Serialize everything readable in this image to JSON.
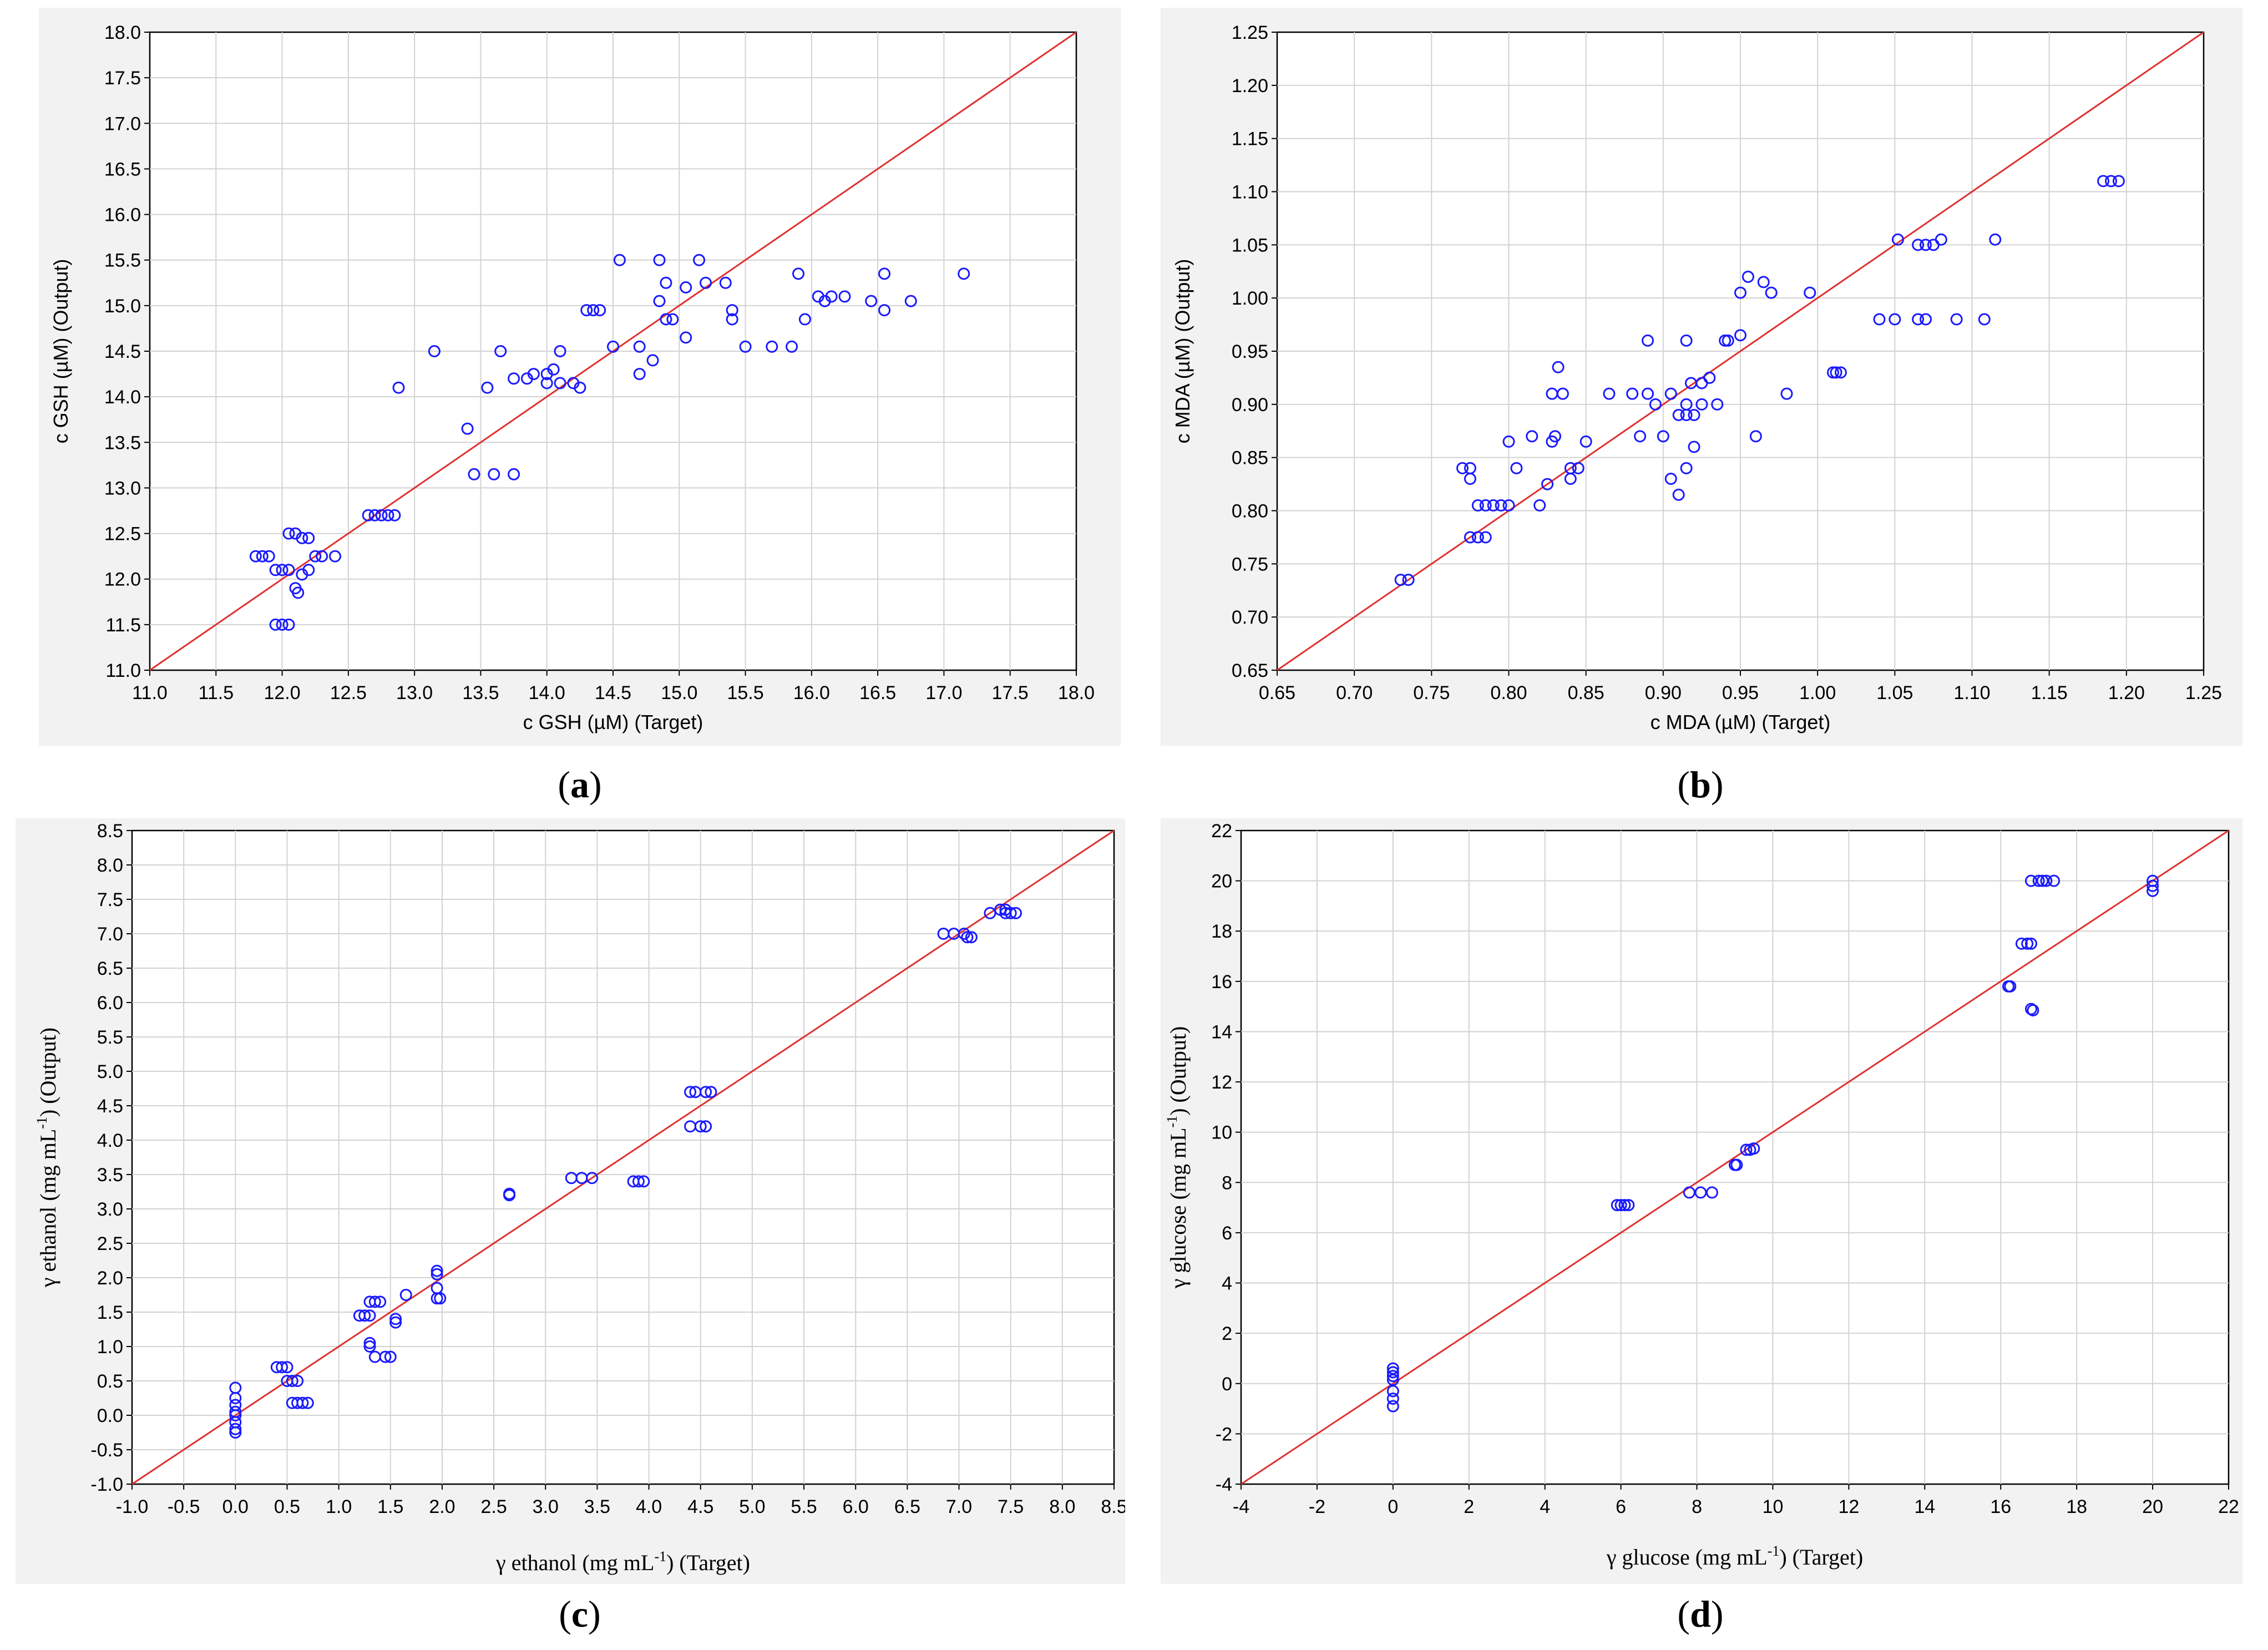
{
  "colors": {
    "point": "#1a1aff",
    "fit_line": "#e03030",
    "panel_bg": "#f2f2f2",
    "grid": "#d2d2d2"
  },
  "panel_labels": {
    "a": "a",
    "b": "b",
    "c": "c",
    "d": "d"
  },
  "chart_data": [
    {
      "type": "scatter",
      "id": "a",
      "xlabel": "c GSH (µM) (Target)",
      "ylabel": "c GSH (µM) (Output)",
      "xlim": [
        11.0,
        18.0
      ],
      "ylim": [
        11.0,
        18.0
      ],
      "xticks": [
        "11.0",
        "11.5",
        "12.0",
        "12.5",
        "13.0",
        "13.5",
        "14.0",
        "14.5",
        "15.0",
        "15.5",
        "16.0",
        "16.5",
        "17.0",
        "17.5",
        "18.0"
      ],
      "yticks": [
        "11.0",
        "11.5",
        "12.0",
        "12.5",
        "13.0",
        "13.5",
        "14.0",
        "14.5",
        "15.0",
        "15.5",
        "16.0",
        "16.5",
        "17.0",
        "17.5",
        "18.0"
      ],
      "line": [
        [
          11.0,
          11.0
        ],
        [
          18.0,
          18.0
        ]
      ],
      "grid": true,
      "points": [
        [
          11.8,
          12.25
        ],
        [
          11.85,
          12.25
        ],
        [
          11.9,
          12.25
        ],
        [
          11.95,
          12.1
        ],
        [
          12.0,
          12.1
        ],
        [
          12.05,
          12.1
        ],
        [
          11.95,
          11.5
        ],
        [
          12.0,
          11.5
        ],
        [
          12.05,
          11.5
        ],
        [
          12.05,
          12.5
        ],
        [
          12.1,
          12.5
        ],
        [
          12.15,
          12.45
        ],
        [
          12.2,
          12.45
        ],
        [
          12.1,
          11.9
        ],
        [
          12.12,
          11.85
        ],
        [
          12.15,
          12.05
        ],
        [
          12.2,
          12.1
        ],
        [
          12.25,
          12.25
        ],
        [
          12.3,
          12.25
        ],
        [
          12.4,
          12.25
        ],
        [
          12.65,
          12.7
        ],
        [
          12.7,
          12.7
        ],
        [
          12.75,
          12.7
        ],
        [
          12.8,
          12.7
        ],
        [
          12.85,
          12.7
        ],
        [
          12.88,
          14.1
        ],
        [
          13.15,
          14.5
        ],
        [
          13.4,
          13.65
        ],
        [
          13.45,
          13.15
        ],
        [
          13.6,
          13.15
        ],
        [
          13.75,
          13.15
        ],
        [
          13.55,
          14.1
        ],
        [
          13.65,
          14.5
        ],
        [
          13.75,
          14.2
        ],
        [
          13.85,
          14.2
        ],
        [
          13.9,
          14.25
        ],
        [
          14.0,
          14.25
        ],
        [
          14.05,
          14.3
        ],
        [
          14.1,
          14.5
        ],
        [
          14.0,
          14.15
        ],
        [
          14.1,
          14.15
        ],
        [
          14.2,
          14.15
        ],
        [
          14.25,
          14.1
        ],
        [
          14.3,
          14.95
        ],
        [
          14.35,
          14.95
        ],
        [
          14.4,
          14.95
        ],
        [
          14.5,
          14.55
        ],
        [
          14.55,
          15.5
        ],
        [
          14.7,
          14.55
        ],
        [
          14.7,
          14.25
        ],
        [
          14.8,
          14.4
        ],
        [
          14.85,
          15.05
        ],
        [
          14.85,
          15.5
        ],
        [
          14.9,
          15.25
        ],
        [
          14.9,
          14.85
        ],
        [
          14.95,
          14.85
        ],
        [
          15.05,
          14.65
        ],
        [
          15.05,
          15.2
        ],
        [
          15.15,
          15.5
        ],
        [
          15.2,
          15.25
        ],
        [
          15.35,
          15.25
        ],
        [
          15.4,
          14.95
        ],
        [
          15.4,
          14.85
        ],
        [
          15.5,
          14.55
        ],
        [
          15.7,
          14.55
        ],
        [
          15.85,
          14.55
        ],
        [
          15.9,
          15.35
        ],
        [
          15.95,
          14.85
        ],
        [
          16.05,
          15.1
        ],
        [
          16.1,
          15.05
        ],
        [
          16.15,
          15.1
        ],
        [
          16.25,
          15.1
        ],
        [
          16.45,
          15.05
        ],
        [
          16.55,
          15.35
        ],
        [
          16.55,
          14.95
        ],
        [
          16.75,
          15.05
        ],
        [
          17.15,
          15.35
        ]
      ]
    },
    {
      "type": "scatter",
      "id": "b",
      "xlabel": "c MDA (µM) (Target)",
      "ylabel": "c MDA (µM) (Output)",
      "xlim": [
        0.65,
        1.25
      ],
      "ylim": [
        0.65,
        1.25
      ],
      "xticks": [
        "0.65",
        "0.70",
        "0.75",
        "0.80",
        "0.85",
        "0.90",
        "0.95",
        "1.00",
        "1.05",
        "1.10",
        "1.15",
        "1.20",
        "1.25"
      ],
      "yticks": [
        "0.65",
        "0.70",
        "0.75",
        "0.80",
        "0.85",
        "0.90",
        "0.95",
        "1.00",
        "1.05",
        "1.10",
        "1.15",
        "1.20",
        "1.25"
      ],
      "line": [
        [
          0.65,
          0.65
        ],
        [
          1.25,
          1.25
        ]
      ],
      "grid": true,
      "points": [
        [
          0.73,
          0.735
        ],
        [
          0.735,
          0.735
        ],
        [
          0.77,
          0.84
        ],
        [
          0.775,
          0.84
        ],
        [
          0.775,
          0.83
        ],
        [
          0.775,
          0.775
        ],
        [
          0.78,
          0.775
        ],
        [
          0.785,
          0.775
        ],
        [
          0.78,
          0.805
        ],
        [
          0.785,
          0.805
        ],
        [
          0.79,
          0.805
        ],
        [
          0.795,
          0.805
        ],
        [
          0.8,
          0.805
        ],
        [
          0.8,
          0.865
        ],
        [
          0.805,
          0.84
        ],
        [
          0.815,
          0.87
        ],
        [
          0.82,
          0.805
        ],
        [
          0.825,
          0.825
        ],
        [
          0.828,
          0.865
        ],
        [
          0.83,
          0.87
        ],
        [
          0.828,
          0.91
        ],
        [
          0.832,
          0.935
        ],
        [
          0.835,
          0.91
        ],
        [
          0.84,
          0.84
        ],
        [
          0.84,
          0.83
        ],
        [
          0.845,
          0.84
        ],
        [
          0.85,
          0.865
        ],
        [
          0.865,
          0.91
        ],
        [
          0.88,
          0.91
        ],
        [
          0.885,
          0.87
        ],
        [
          0.89,
          0.96
        ],
        [
          0.89,
          0.91
        ],
        [
          0.895,
          0.9
        ],
        [
          0.9,
          0.87
        ],
        [
          0.905,
          0.91
        ],
        [
          0.905,
          0.83
        ],
        [
          0.91,
          0.815
        ],
        [
          0.91,
          0.89
        ],
        [
          0.915,
          0.89
        ],
        [
          0.915,
          0.9
        ],
        [
          0.915,
          0.96
        ],
        [
          0.915,
          0.84
        ],
        [
          0.918,
          0.92
        ],
        [
          0.92,
          0.86
        ],
        [
          0.92,
          0.89
        ],
        [
          0.925,
          0.92
        ],
        [
          0.925,
          0.9
        ],
        [
          0.93,
          0.925
        ],
        [
          0.935,
          0.9
        ],
        [
          0.94,
          0.96
        ],
        [
          0.942,
          0.96
        ],
        [
          0.95,
          0.965
        ],
        [
          0.95,
          1.005
        ],
        [
          0.955,
          1.02
        ],
        [
          0.96,
          0.87
        ],
        [
          0.965,
          1.015
        ],
        [
          0.97,
          1.005
        ],
        [
          0.98,
          0.91
        ],
        [
          0.995,
          1.005
        ],
        [
          1.01,
          0.93
        ],
        [
          1.012,
          0.93
        ],
        [
          1.015,
          0.93
        ],
        [
          1.04,
          0.98
        ],
        [
          1.05,
          0.98
        ],
        [
          1.052,
          1.055
        ],
        [
          1.065,
          1.05
        ],
        [
          1.065,
          0.98
        ],
        [
          1.07,
          0.98
        ],
        [
          1.07,
          1.05
        ],
        [
          1.075,
          1.05
        ],
        [
          1.08,
          1.055
        ],
        [
          1.09,
          0.98
        ],
        [
          1.108,
          0.98
        ],
        [
          1.115,
          1.055
        ],
        [
          1.185,
          1.11
        ],
        [
          1.19,
          1.11
        ],
        [
          1.195,
          1.11
        ]
      ]
    },
    {
      "type": "scatter",
      "id": "c",
      "xlabel_main": "γ ethanol (mg mL",
      "xlabel_sup": "-1",
      "xlabel_end": ") (Target)",
      "ylabel_main": "γ ethanol (mg mL",
      "ylabel_sup": "-1",
      "ylabel_end": ") (Output)",
      "xlim": [
        -1.0,
        8.5
      ],
      "ylim": [
        -1.0,
        8.5
      ],
      "xticks": [
        "-1.0",
        "-0.5",
        "0.0",
        "0.5",
        "1.0",
        "1.5",
        "2.0",
        "2.5",
        "3.0",
        "3.5",
        "4.0",
        "4.5",
        "5.0",
        "5.5",
        "6.0",
        "6.5",
        "7.0",
        "7.5",
        "8.0",
        "8.5"
      ],
      "yticks": [
        "-1.0",
        "-0.5",
        "0.0",
        "0.5",
        "1.0",
        "1.5",
        "2.0",
        "2.5",
        "3.0",
        "3.5",
        "4.0",
        "4.5",
        "5.0",
        "5.5",
        "6.0",
        "6.5",
        "7.0",
        "7.5",
        "8.0",
        "8.5"
      ],
      "line": [
        [
          -1.0,
          -1.0
        ],
        [
          8.5,
          8.5
        ]
      ],
      "grid": true,
      "points": [
        [
          0.0,
          0.4
        ],
        [
          0.0,
          0.25
        ],
        [
          0.0,
          0.15
        ],
        [
          0.0,
          0.05
        ],
        [
          0.0,
          0.0
        ],
        [
          0.0,
          -0.1
        ],
        [
          0.0,
          -0.2
        ],
        [
          0.0,
          -0.25
        ],
        [
          0.4,
          0.7
        ],
        [
          0.45,
          0.7
        ],
        [
          0.5,
          0.7
        ],
        [
          0.5,
          0.5
        ],
        [
          0.55,
          0.5
        ],
        [
          0.6,
          0.5
        ],
        [
          0.55,
          0.18
        ],
        [
          0.6,
          0.18
        ],
        [
          0.65,
          0.18
        ],
        [
          0.7,
          0.18
        ],
        [
          1.2,
          1.45
        ],
        [
          1.25,
          1.45
        ],
        [
          1.3,
          1.45
        ],
        [
          1.3,
          1.05
        ],
        [
          1.3,
          1.0
        ],
        [
          1.3,
          1.65
        ],
        [
          1.35,
          1.65
        ],
        [
          1.4,
          1.65
        ],
        [
          1.35,
          0.85
        ],
        [
          1.45,
          0.85
        ],
        [
          1.5,
          0.85
        ],
        [
          1.55,
          1.35
        ],
        [
          1.55,
          1.4
        ],
        [
          1.65,
          1.75
        ],
        [
          1.95,
          2.1
        ],
        [
          1.95,
          2.05
        ],
        [
          1.95,
          1.85
        ],
        [
          1.95,
          1.7
        ],
        [
          1.98,
          1.7
        ],
        [
          2.65,
          3.2
        ],
        [
          2.65,
          3.22
        ],
        [
          3.25,
          3.45
        ],
        [
          3.35,
          3.45
        ],
        [
          3.45,
          3.45
        ],
        [
          3.85,
          3.4
        ],
        [
          3.9,
          3.4
        ],
        [
          3.95,
          3.4
        ],
        [
          4.4,
          4.7
        ],
        [
          4.45,
          4.7
        ],
        [
          4.55,
          4.7
        ],
        [
          4.6,
          4.7
        ],
        [
          4.4,
          4.2
        ],
        [
          4.5,
          4.2
        ],
        [
          4.55,
          4.2
        ],
        [
          6.85,
          7.0
        ],
        [
          6.95,
          7.0
        ],
        [
          7.05,
          7.0
        ],
        [
          7.08,
          6.95
        ],
        [
          7.12,
          6.95
        ],
        [
          7.3,
          7.3
        ],
        [
          7.4,
          7.35
        ],
        [
          7.45,
          7.35
        ],
        [
          7.45,
          7.3
        ],
        [
          7.5,
          7.3
        ],
        [
          7.55,
          7.3
        ]
      ]
    },
    {
      "type": "scatter",
      "id": "d",
      "xlabel_main": "γ glucose (mg mL",
      "xlabel_sup": "-1",
      "xlabel_end": ") (Target)",
      "ylabel_main": "γ glucose (mg mL",
      "ylabel_sup": "-1",
      "ylabel_end": ") (Output)",
      "xlim": [
        -4,
        22
      ],
      "ylim": [
        -4,
        22
      ],
      "xticks": [
        "-4",
        "-2",
        "0",
        "2",
        "4",
        "6",
        "8",
        "10",
        "12",
        "14",
        "16",
        "18",
        "20",
        "22"
      ],
      "yticks": [
        "-4",
        "-2",
        "0",
        "2",
        "4",
        "6",
        "8",
        "10",
        "12",
        "14",
        "16",
        "18",
        "20",
        "22"
      ],
      "line": [
        [
          -4,
          -4
        ],
        [
          22,
          22
        ]
      ],
      "grid": true,
      "points": [
        [
          0.0,
          0.6
        ],
        [
          0.0,
          0.45
        ],
        [
          0.0,
          0.3
        ],
        [
          0.0,
          0.15
        ],
        [
          0.0,
          -0.3
        ],
        [
          0.0,
          -0.6
        ],
        [
          0.0,
          -0.9
        ],
        [
          5.9,
          7.1
        ],
        [
          6.0,
          7.1
        ],
        [
          6.1,
          7.1
        ],
        [
          6.2,
          7.1
        ],
        [
          7.8,
          7.6
        ],
        [
          8.1,
          7.6
        ],
        [
          8.4,
          7.6
        ],
        [
          9.0,
          8.7
        ],
        [
          9.05,
          8.7
        ],
        [
          9.3,
          9.3
        ],
        [
          9.4,
          9.3
        ],
        [
          9.5,
          9.35
        ],
        [
          16.2,
          15.8
        ],
        [
          16.25,
          15.8
        ],
        [
          16.55,
          17.5
        ],
        [
          16.7,
          17.5
        ],
        [
          16.8,
          17.5
        ],
        [
          16.8,
          14.9
        ],
        [
          16.85,
          14.85
        ],
        [
          16.8,
          20.0
        ],
        [
          17.0,
          20.0
        ],
        [
          17.1,
          20.0
        ],
        [
          17.2,
          20.0
        ],
        [
          17.4,
          20.0
        ],
        [
          20.0,
          20.0
        ],
        [
          20.0,
          19.8
        ],
        [
          20.0,
          19.6
        ]
      ]
    }
  ]
}
